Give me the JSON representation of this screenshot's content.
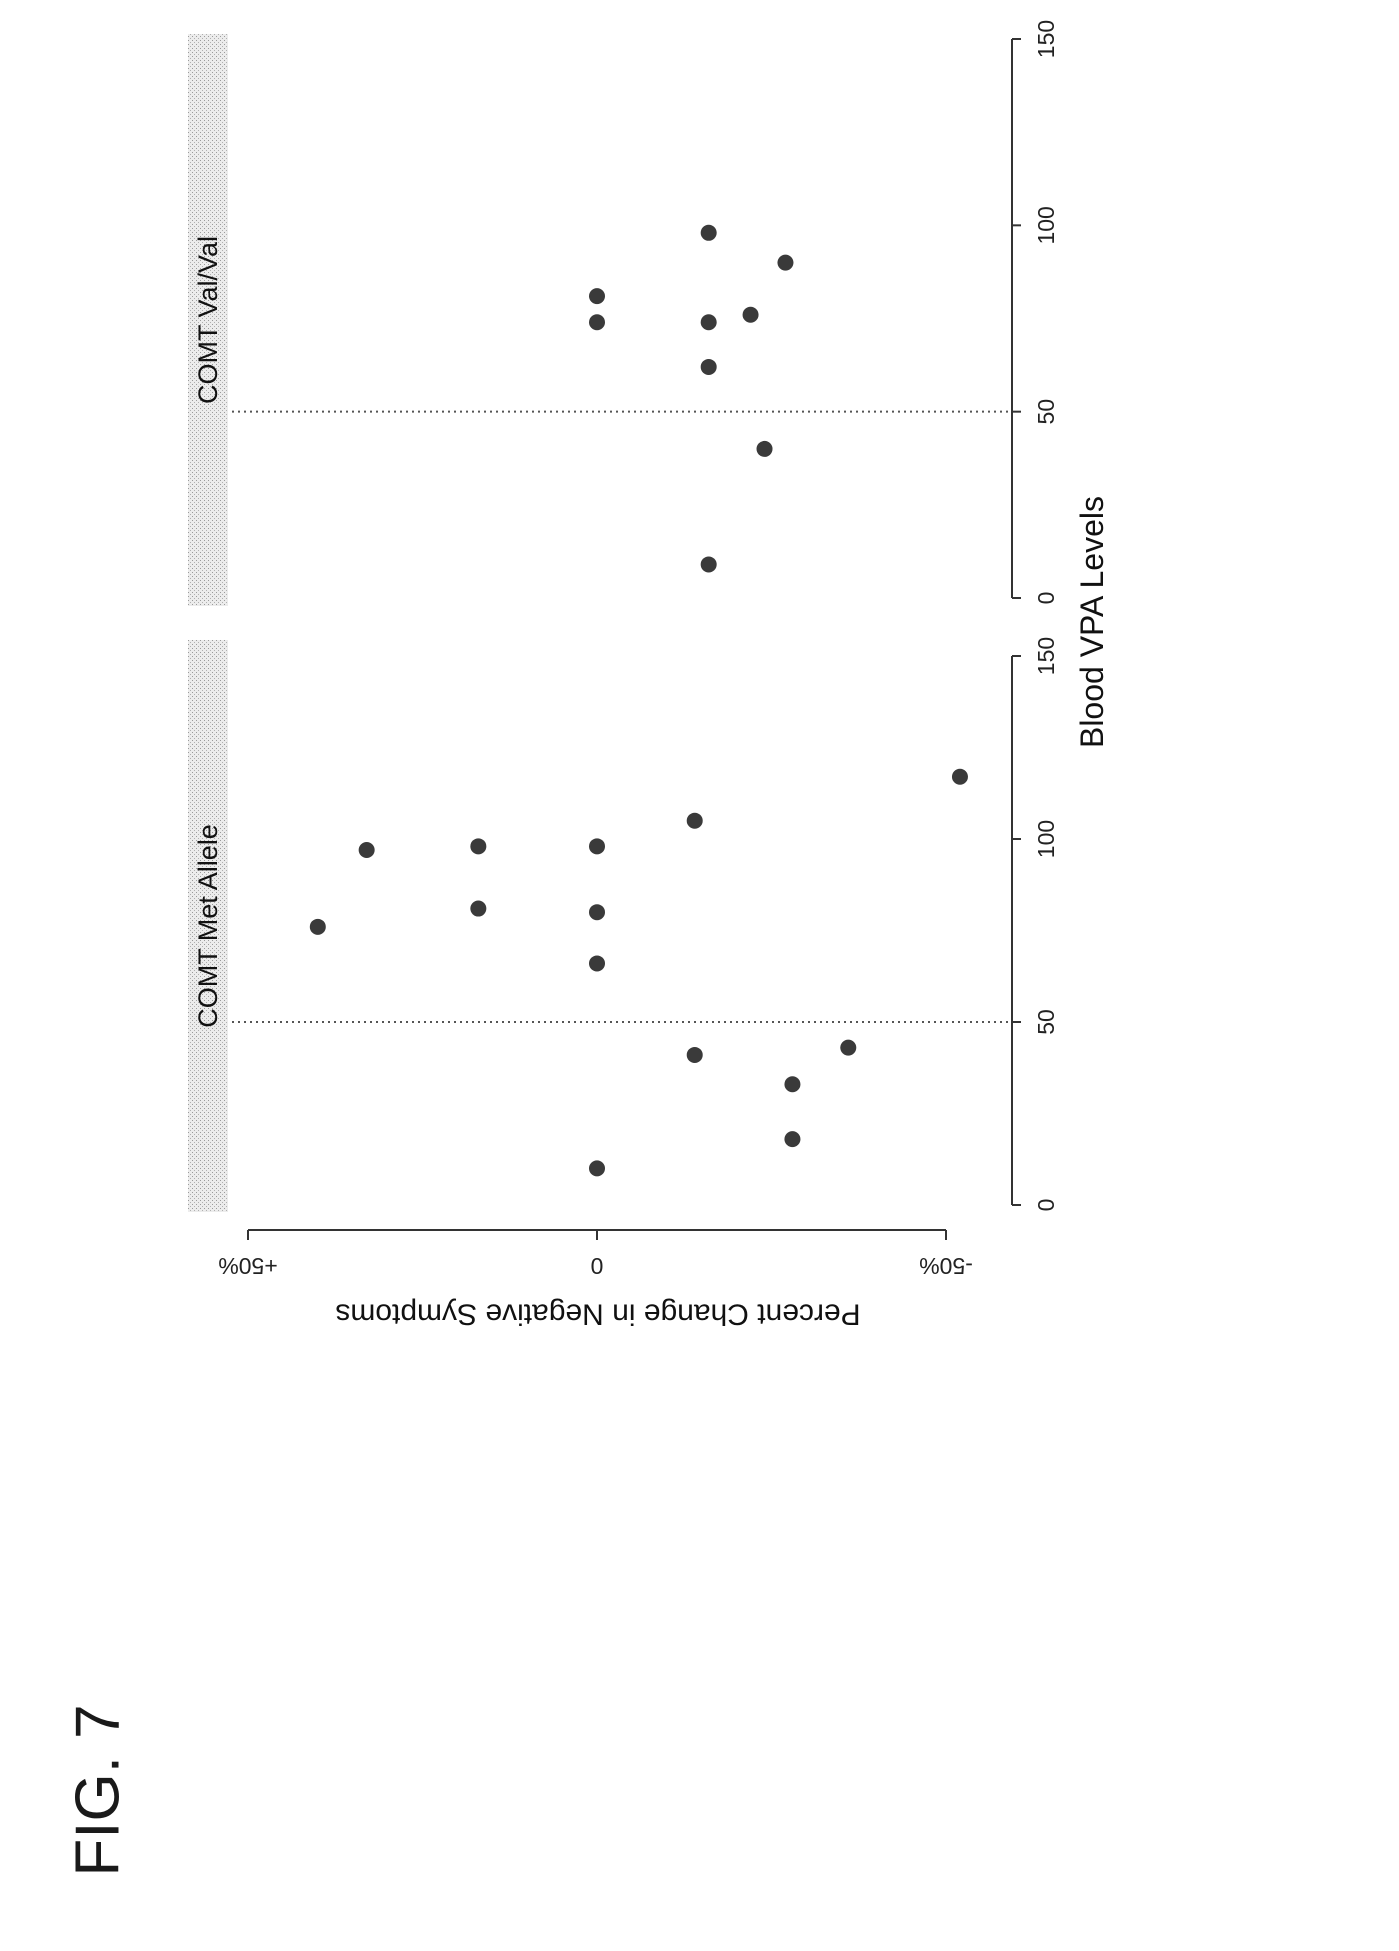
{
  "figure_label": "FIG. 7",
  "chart_data": {
    "type": "scatter",
    "xlabel": "Blood VPA Levels",
    "ylabel": "Percent Change in Negative Symptoms",
    "xlim": [
      0,
      150
    ],
    "ylim": [
      -50,
      50
    ],
    "x_ticks": [
      0,
      50,
      100,
      150
    ],
    "y_ticks": [
      {
        "value": 50,
        "label": "+50%"
      },
      {
        "value": 0,
        "label": "0"
      },
      {
        "value": -50,
        "label": "-50%"
      }
    ],
    "reference_line": {
      "x": 50,
      "style": "dotted"
    },
    "grid": false,
    "orientation": "rotated 90° counter-clockwise",
    "panels": [
      {
        "title": "COMT Met Allele",
        "points": [
          {
            "x": 10,
            "y": 0
          },
          {
            "x": 18,
            "y": -28
          },
          {
            "x": 33,
            "y": -28
          },
          {
            "x": 41,
            "y": -14
          },
          {
            "x": 43,
            "y": -36
          },
          {
            "x": 66,
            "y": 0
          },
          {
            "x": 76,
            "y": 40
          },
          {
            "x": 80,
            "y": 0
          },
          {
            "x": 81,
            "y": 17
          },
          {
            "x": 97,
            "y": 33
          },
          {
            "x": 98,
            "y": 17
          },
          {
            "x": 98,
            "y": 0
          },
          {
            "x": 105,
            "y": -14
          },
          {
            "x": 117,
            "y": -52
          }
        ]
      },
      {
        "title": "COMT Val/Val",
        "points": [
          {
            "x": 9,
            "y": -16
          },
          {
            "x": 40,
            "y": -24
          },
          {
            "x": 62,
            "y": -16
          },
          {
            "x": 74,
            "y": -16
          },
          {
            "x": 74,
            "y": 0
          },
          {
            "x": 76,
            "y": -22
          },
          {
            "x": 81,
            "y": 0
          },
          {
            "x": 90,
            "y": -27
          },
          {
            "x": 98,
            "y": -16
          }
        ]
      }
    ]
  }
}
